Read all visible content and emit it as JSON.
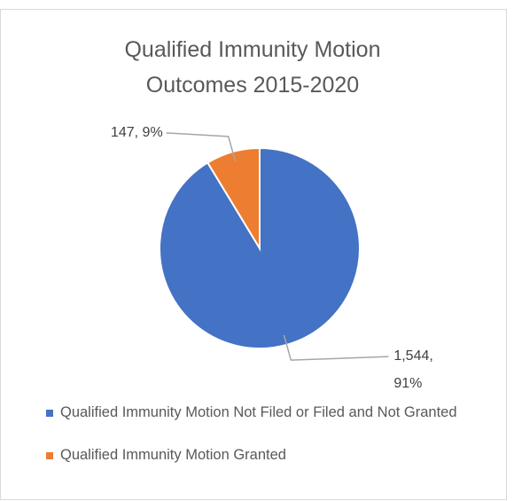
{
  "chart_data": {
    "type": "pie",
    "title": "Qualified Immunity Motion Outcomes 2015-2020",
    "categories": [
      "Qualified Immunity Motion Not Filed or Filed and Not Granted",
      "Qualified Immunity Motion Granted"
    ],
    "values": [
      1544,
      147
    ],
    "value_labels": [
      "1,544, 91%",
      "147, 9%"
    ],
    "colors": [
      "#4472c4",
      "#ed7d31"
    ],
    "legend": "bottom"
  }
}
